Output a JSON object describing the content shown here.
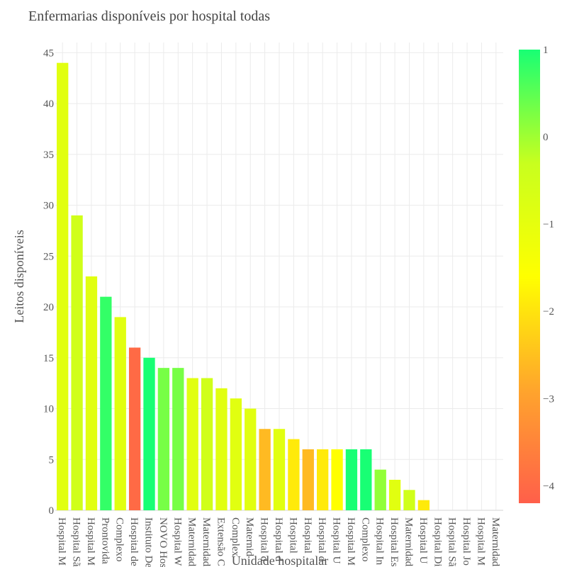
{
  "chart_data": {
    "type": "bar",
    "title": "Enfermarias disponíveis por hospital todas",
    "xlabel": "Unidade hospitalar",
    "ylabel": "Leitos disponíveis",
    "ylim": [
      0,
      46
    ],
    "y_ticks": [
      0,
      5,
      10,
      15,
      20,
      25,
      30,
      35,
      40,
      45
    ],
    "grid": true,
    "categories": [
      "Hospital M",
      "Hospital Sã",
      "Hospital M",
      "Prontovida",
      "Complexo",
      "Hospital de",
      "Instituto De",
      "NOVO Hos",
      "Hospital W",
      "Maternidad",
      "Maternidad",
      "Extensão C",
      "Complex",
      "Maternid",
      "Hospital d",
      "Hospital d",
      "Hospital",
      "Hospital",
      "Hospital d",
      "Hospital U",
      "Hospital M",
      "Complexo",
      "Hospital In",
      "Hospital Es",
      "Maternidad",
      "Hospital U",
      "Hospital Di",
      "Hospital Sã",
      "Hospital Jo",
      "Hospital M",
      "Maternidad"
    ],
    "values": [
      44,
      29,
      23,
      21,
      19,
      16,
      15,
      14,
      14,
      13,
      13,
      12,
      11,
      10,
      8,
      8,
      7,
      6,
      6,
      6,
      6,
      6,
      4,
      3,
      2,
      1,
      0,
      0,
      0,
      0,
      0
    ],
    "color_values": [
      -0.9,
      -0.5,
      -0.9,
      0.8,
      -0.9,
      -4.0,
      1.0,
      0.3,
      0.3,
      -0.9,
      -0.5,
      -0.9,
      -0.9,
      -0.9,
      -2.6,
      -0.9,
      -1.9,
      -2.6,
      -1.9,
      -1.6,
      1.0,
      1.0,
      0.1,
      -0.9,
      -0.5,
      -1.9,
      0,
      0,
      0,
      0,
      0
    ],
    "colorbar": {
      "range": [
        -4.2,
        1.0
      ],
      "ticks": [
        1,
        0,
        -1,
        -2,
        -3,
        -4
      ],
      "tick_labels": [
        "1",
        "0",
        "−1",
        "−2",
        "−3",
        "−4"
      ],
      "colors": [
        "#ff5f4a",
        "#ffa52c",
        "#ffff00",
        "#c8ff1e",
        "#18ff74"
      ]
    },
    "gridline_color": "#ebebeb",
    "axis_color": "#555555"
  }
}
